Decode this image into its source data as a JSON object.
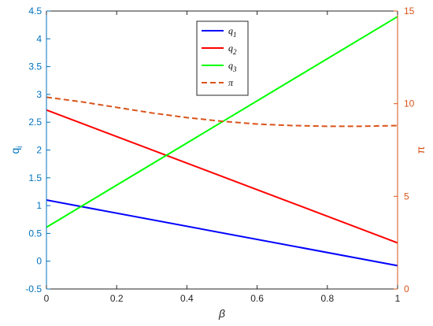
{
  "chart_data": {
    "type": "line",
    "xlabel": "β",
    "ylabel_left": "q",
    "ylabel_left_subscript": "i",
    "ylabel_right": "π",
    "xlim": [
      0,
      1
    ],
    "ylim_left": [
      -0.5,
      4.5
    ],
    "ylim_right": [
      0,
      15
    ],
    "x_ticks": [
      "0",
      "0.2",
      "0.4",
      "0.6",
      "0.8",
      "1"
    ],
    "y_left_ticks": [
      "-0.5",
      "0",
      "0.5",
      "1",
      "1.5",
      "2",
      "2.5",
      "3",
      "3.5",
      "4",
      "4.5"
    ],
    "y_right_ticks": [
      "0",
      "5",
      "10",
      "15"
    ],
    "grid": false,
    "legend_position": "top-center",
    "colors": {
      "left_axis": "#0072BD",
      "right_axis": "#D95319"
    },
    "series": [
      {
        "name": "q1",
        "legend_base": "q",
        "legend_sub": "1",
        "axis": "left",
        "color": "#0000ff",
        "style": "solid",
        "x": [
          0,
          1
        ],
        "y": [
          1.1,
          -0.08
        ]
      },
      {
        "name": "q2",
        "legend_base": "q",
        "legend_sub": "2",
        "axis": "left",
        "color": "#ff0000",
        "style": "solid",
        "x": [
          0,
          1
        ],
        "y": [
          2.72,
          0.33
        ]
      },
      {
        "name": "q3",
        "legend_base": "q",
        "legend_sub": "3",
        "axis": "left",
        "color": "#00ff00",
        "style": "solid",
        "x": [
          0,
          1
        ],
        "y": [
          0.61,
          4.4
        ]
      },
      {
        "name": "π",
        "legend_base": "π",
        "legend_sub": "",
        "axis": "right",
        "color": "#D95319",
        "style": "dashed",
        "x": [
          0,
          0.1,
          0.2,
          0.3,
          0.4,
          0.5,
          0.6,
          0.7,
          0.8,
          0.9,
          1
        ],
        "y": [
          10.35,
          10.1,
          9.8,
          9.5,
          9.25,
          9.05,
          8.9,
          8.82,
          8.78,
          8.78,
          8.82
        ]
      }
    ]
  }
}
